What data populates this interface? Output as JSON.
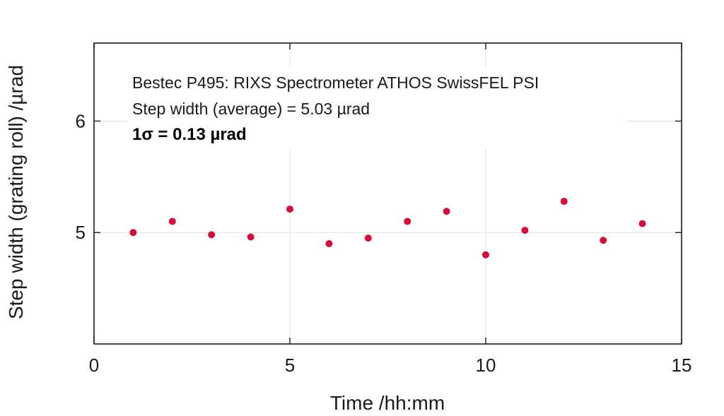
{
  "chart_data": {
    "type": "scatter",
    "xlabel": "Time /hh:mm",
    "ylabel": "Step width (grating roll) /µrad",
    "xlim": [
      0,
      15
    ],
    "ylim": [
      4.0,
      6.7
    ],
    "xticks": [
      0,
      5,
      10,
      15
    ],
    "yticks": [
      5,
      6
    ],
    "grid": true,
    "annotations": [
      "Bestec P495: RIXS Spectrometer ATHOS SwissFEL PSI",
      "Step width (average) = 5.03 µrad",
      "1σ = 0.13 µrad"
    ],
    "series": [
      {
        "x": [
          1,
          2,
          3,
          4,
          5,
          6,
          7,
          8,
          9,
          10,
          11,
          12,
          13,
          14
        ],
        "y": [
          5.0,
          5.1,
          4.98,
          4.96,
          5.21,
          4.9,
          4.95,
          5.1,
          5.19,
          4.8,
          5.02,
          5.28,
          4.93,
          5.08
        ]
      }
    ],
    "colors": {
      "points": "#d0103a",
      "frame": "#1a1a1a",
      "grid": "#e0e0e0"
    }
  }
}
